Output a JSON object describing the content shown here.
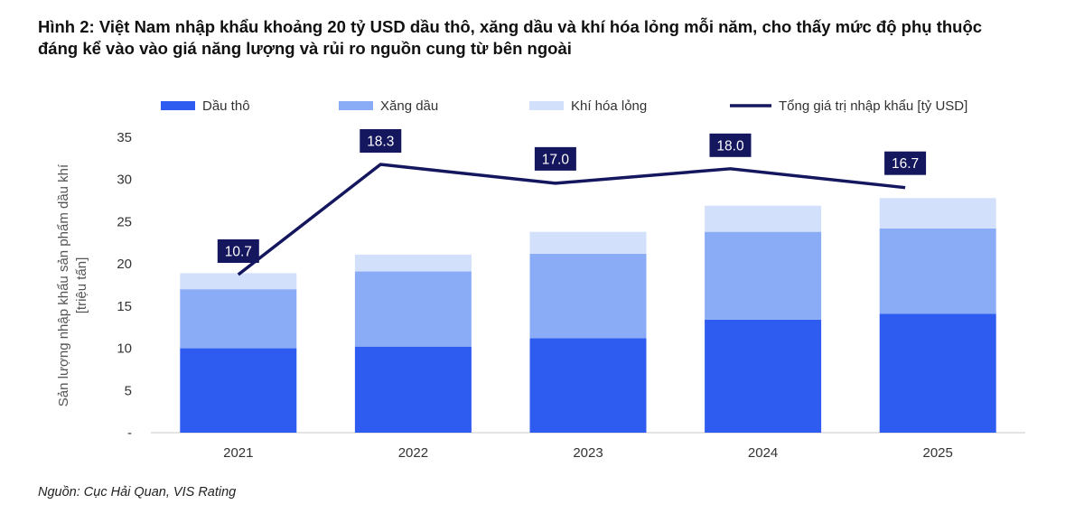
{
  "title": {
    "line1": "Hình 2: Việt Nam nhập khẩu khoảng 20 tỷ USD dầu thô, xăng dầu và khí hóa lỏng mỗi năm, cho thấy mức độ phụ thuộc",
    "line2": "đáng kể vào vào giá năng lượng và rủi ro nguồn cung từ bên ngoài"
  },
  "source": "Nguồn: Cục Hải Quan, VIS Rating",
  "chart_data": {
    "type": "bar",
    "stacked": true,
    "categories": [
      "2021",
      "2022",
      "2023",
      "2024",
      "2025"
    ],
    "series": [
      {
        "name": "Dầu thô",
        "values": [
          10.0,
          10.2,
          11.2,
          13.4,
          14.1
        ],
        "color": "#2e5bf0"
      },
      {
        "name": "Xăng dầu",
        "values": [
          7.0,
          8.9,
          10.0,
          10.4,
          10.1
        ],
        "color": "#8aacf7"
      },
      {
        "name": "Khí hóa lỏng",
        "values": [
          1.9,
          2.0,
          2.6,
          3.1,
          3.6
        ],
        "color": "#d3e0fc"
      }
    ],
    "line_series": {
      "name": "Tổng giá trị nhập khẩu [tỷ USD]",
      "values": [
        10.7,
        18.3,
        17.0,
        18.0,
        16.7
      ],
      "labels": [
        "10.7",
        "18.3",
        "17.0",
        "18.0",
        "16.7"
      ],
      "color": "#14165e"
    },
    "ylabel_line1": "Sản lượng nhập khẩu sản phẩm dầu khí",
    "ylabel_line2": "[triệu tấn]",
    "ylim": [
      0,
      35
    ],
    "yticks": [
      0,
      5,
      10,
      15,
      20,
      25,
      30,
      35
    ],
    "ytick_labels": [
      "-",
      "5",
      "10",
      "15",
      "20",
      "25",
      "30",
      "35"
    ],
    "legend_position": "top",
    "grid": false
  }
}
